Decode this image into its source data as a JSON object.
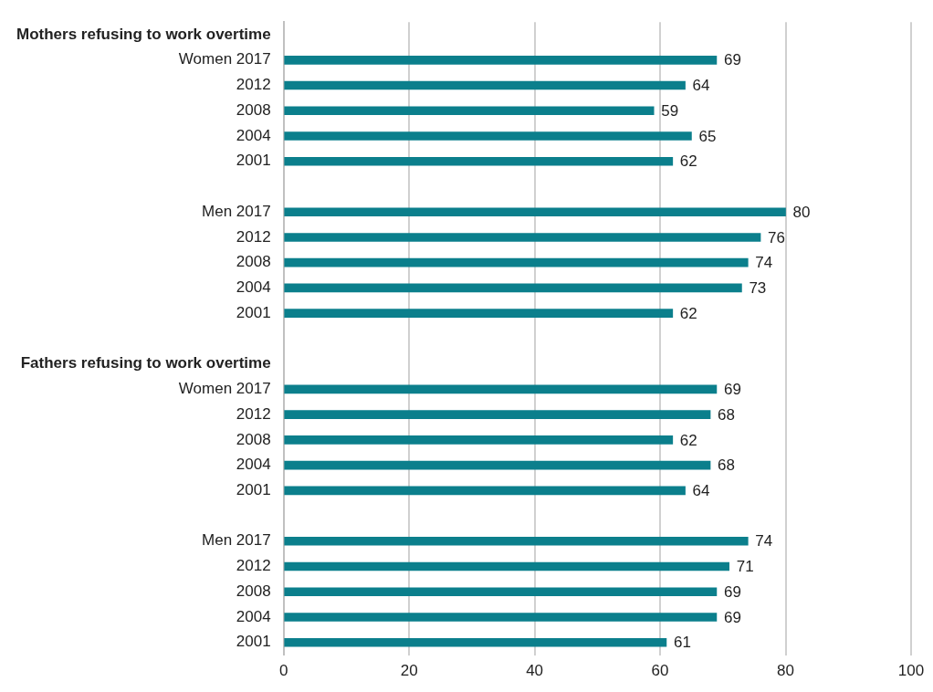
{
  "chart_data": {
    "type": "bar",
    "orientation": "horizontal",
    "categories": [
      "Mothers refusing to work overtime",
      "Women 2017",
      "2012",
      "2008",
      "2004",
      "2001",
      null,
      "Men 2017",
      "2012",
      "2008",
      "2004",
      "2001",
      null,
      "Fathers refusing to work overtime",
      "Women 2017",
      "2012",
      "2008",
      "2004",
      "2001",
      null,
      "Men 2017",
      "2012",
      "2008",
      "2004",
      "2001"
    ],
    "values": [
      null,
      69,
      64,
      59,
      65,
      62,
      null,
      80,
      76,
      74,
      73,
      62,
      null,
      null,
      69,
      68,
      62,
      68,
      64,
      null,
      74,
      71,
      69,
      69,
      61
    ],
    "color": "#0b7f8c",
    "xlim": [
      0,
      100
    ],
    "xticks": [
      0,
      20,
      40,
      60,
      80,
      100
    ],
    "grid": "x",
    "data_labels": true,
    "legend": false
  }
}
